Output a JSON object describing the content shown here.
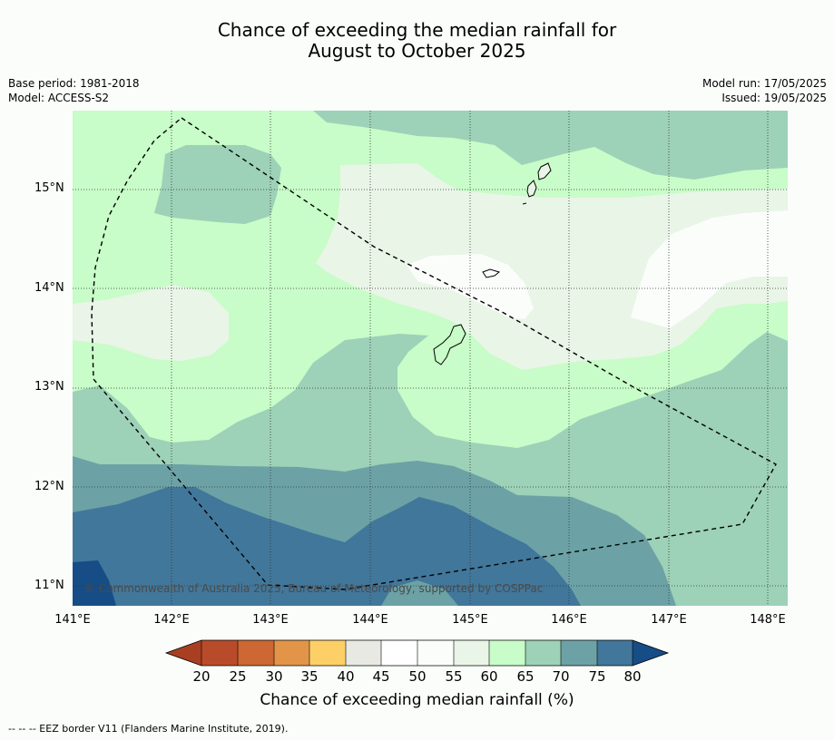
{
  "title_line1": "Chance of exceeding the median rainfall for",
  "title_line2": "August to October 2025",
  "meta_left": {
    "line1": "Base period: 1981-2018",
    "line2": "Model: ACCESS-S2"
  },
  "meta_right": {
    "line1": "Model run: 17/05/2025",
    "line2": "Issued: 19/05/2025"
  },
  "y_ticks": [
    "15°N",
    "14°N",
    "13°N",
    "12°N",
    "11°N"
  ],
  "x_ticks": [
    "141°E",
    "142°E",
    "143°E",
    "144°E",
    "145°E",
    "146°E",
    "147°E",
    "148°E"
  ],
  "copyright": "© Commonwealth of Australia 2025, Bureau of Meteorology, supported by COSPPac",
  "colorbar": {
    "ticks": [
      "20",
      "25",
      "30",
      "35",
      "40",
      "45",
      "50",
      "55",
      "60",
      "65",
      "70",
      "75",
      "80"
    ],
    "colors": [
      "#a83f22",
      "#b84c2a",
      "#cd6733",
      "#e29548",
      "#fdd067",
      "#e9e9e3",
      "#ffffff",
      "#fbfdfb",
      "#e9f5e7",
      "#c8fcc8",
      "#9dd1b8",
      "#6ca2a5",
      "#41779a",
      "#174d86"
    ],
    "title": "Chance of exceeding median rainfall (%)"
  },
  "footnote": "--  --  -- EEZ border V11 (Flanders Marine Institute, 2019)."
}
